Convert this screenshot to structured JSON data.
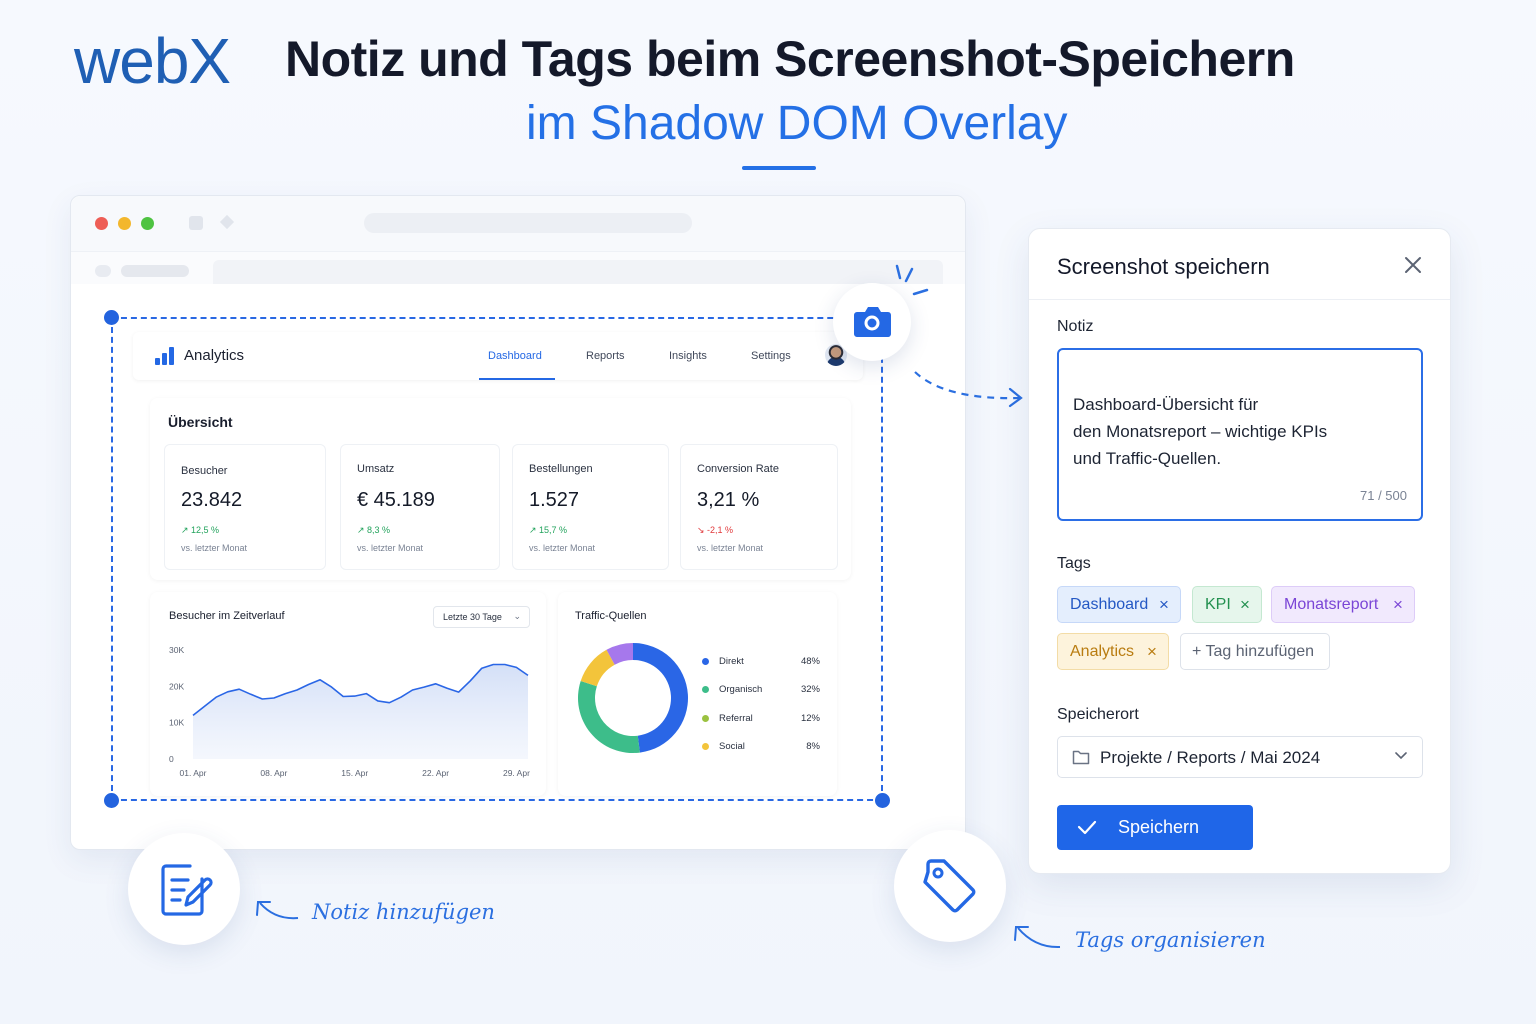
{
  "header": {
    "logo": "webX",
    "title": "Notiz und Tags beim Screenshot-Speichern",
    "subtitle": "im Shadow DOM Overlay"
  },
  "dashboard": {
    "app_name": "Analytics",
    "nav": [
      "Dashboard",
      "Reports",
      "Insights",
      "Settings"
    ],
    "active_nav": "Dashboard",
    "overview_title": "Übersicht",
    "kpis": [
      {
        "label": "Besucher",
        "value": "23.842",
        "delta": "↗ 12,5 %",
        "trend": "up",
        "sub": "vs. letzter Monat"
      },
      {
        "label": "Umsatz",
        "value": "€ 45.189",
        "delta": "↗ 8,3 %",
        "trend": "up",
        "sub": "vs. letzter Monat"
      },
      {
        "label": "Bestellungen",
        "value": "1.527",
        "delta": "↗ 15,7 %",
        "trend": "up",
        "sub": "vs. letzter Monat"
      },
      {
        "label": "Conversion Rate",
        "value": "3,21 %",
        "delta": "↘ -2,1 %",
        "trend": "down",
        "sub": "vs. letzter Monat"
      }
    ],
    "line_chart": {
      "title": "Besucher im Zeitverlauf",
      "range_select": "Letzte 30 Tage",
      "y_ticks": [
        "30K",
        "20K",
        "10K",
        "0"
      ],
      "x_ticks": [
        "01. Apr",
        "08. Apr",
        "15. Apr",
        "22. Apr",
        "29. Apr"
      ]
    },
    "traffic": {
      "title": "Traffic-Quellen",
      "items": [
        {
          "name": "Direkt",
          "pct": "48%",
          "value": 48,
          "color": "#2a66e6"
        },
        {
          "name": "Organisch",
          "pct": "32%",
          "value": 32,
          "color": "#3dbd8a"
        },
        {
          "name": "Referral",
          "pct": "12%",
          "value": 12,
          "color": "#f3c43b"
        },
        {
          "name": "Social",
          "pct": "8%",
          "value": 8,
          "color": "#a678ec"
        }
      ]
    }
  },
  "chart_data": {
    "type": "line",
    "title": "Besucher im Zeitverlauf",
    "xlabel": "",
    "ylabel": "",
    "x": [
      "01. Apr",
      "02. Apr",
      "03. Apr",
      "04. Apr",
      "05. Apr",
      "06. Apr",
      "07. Apr",
      "08. Apr",
      "09. Apr",
      "10. Apr",
      "11. Apr",
      "12. Apr",
      "13. Apr",
      "14. Apr",
      "15. Apr",
      "16. Apr",
      "17. Apr",
      "18. Apr",
      "19. Apr",
      "20. Apr",
      "21. Apr",
      "22. Apr",
      "23. Apr",
      "24. Apr",
      "25. Apr",
      "26. Apr",
      "27. Apr",
      "28. Apr",
      "29. Apr",
      "30. Apr"
    ],
    "values": [
      12000,
      14500,
      17000,
      18500,
      19200,
      17800,
      16500,
      16800,
      18000,
      19000,
      20500,
      21800,
      19800,
      17200,
      17300,
      18000,
      16000,
      15500,
      17000,
      19000,
      19800,
      20700,
      19500,
      18400,
      21500,
      25000,
      26000,
      26000,
      25200,
      23000
    ],
    "ylim": [
      0,
      30000
    ],
    "y_ticks": [
      "30K",
      "20K",
      "10K",
      "0"
    ],
    "x_ticks": [
      "01. Apr",
      "08. Apr",
      "15. Apr",
      "22. Apr",
      "29. Apr"
    ],
    "grid": false,
    "color": "#2a66e6"
  },
  "dialog": {
    "title": "Screenshot speichern",
    "note_label": "Notiz",
    "note_text": "Dashboard-Übersicht für\nden Monatsreport – wichtige KPIs\nund Traffic-Quellen.",
    "note_count": "71 / 500",
    "tags_label": "Tags",
    "tags": [
      {
        "label": "Dashboard",
        "bg": "#e4eefd",
        "border": "#c6d8f8",
        "color": "#2458c4"
      },
      {
        "label": "KPI",
        "bg": "#e6f6ec",
        "border": "#c4e8d1",
        "color": "#22904f"
      },
      {
        "label": "Monatsreport",
        "bg": "#f1e9fd",
        "border": "#ddccf8",
        "color": "#7a45d6"
      },
      {
        "label": "Analytics",
        "bg": "#fdf3dc",
        "border": "#f3dca6",
        "color": "#b97c10"
      }
    ],
    "add_tag": "+ Tag hinzufügen",
    "location_label": "Speicherort",
    "location_value": "Projekte / Reports / Mai 2024",
    "save_label": "Speichern"
  },
  "features": {
    "note": "Notiz hinzufügen",
    "tags": "Tags organisieren"
  },
  "icons": [
    "camera-icon",
    "close-icon",
    "folder-icon",
    "chevron-down-icon",
    "check-icon",
    "note-edit-icon",
    "tag-icon",
    "bar-chart-icon"
  ]
}
